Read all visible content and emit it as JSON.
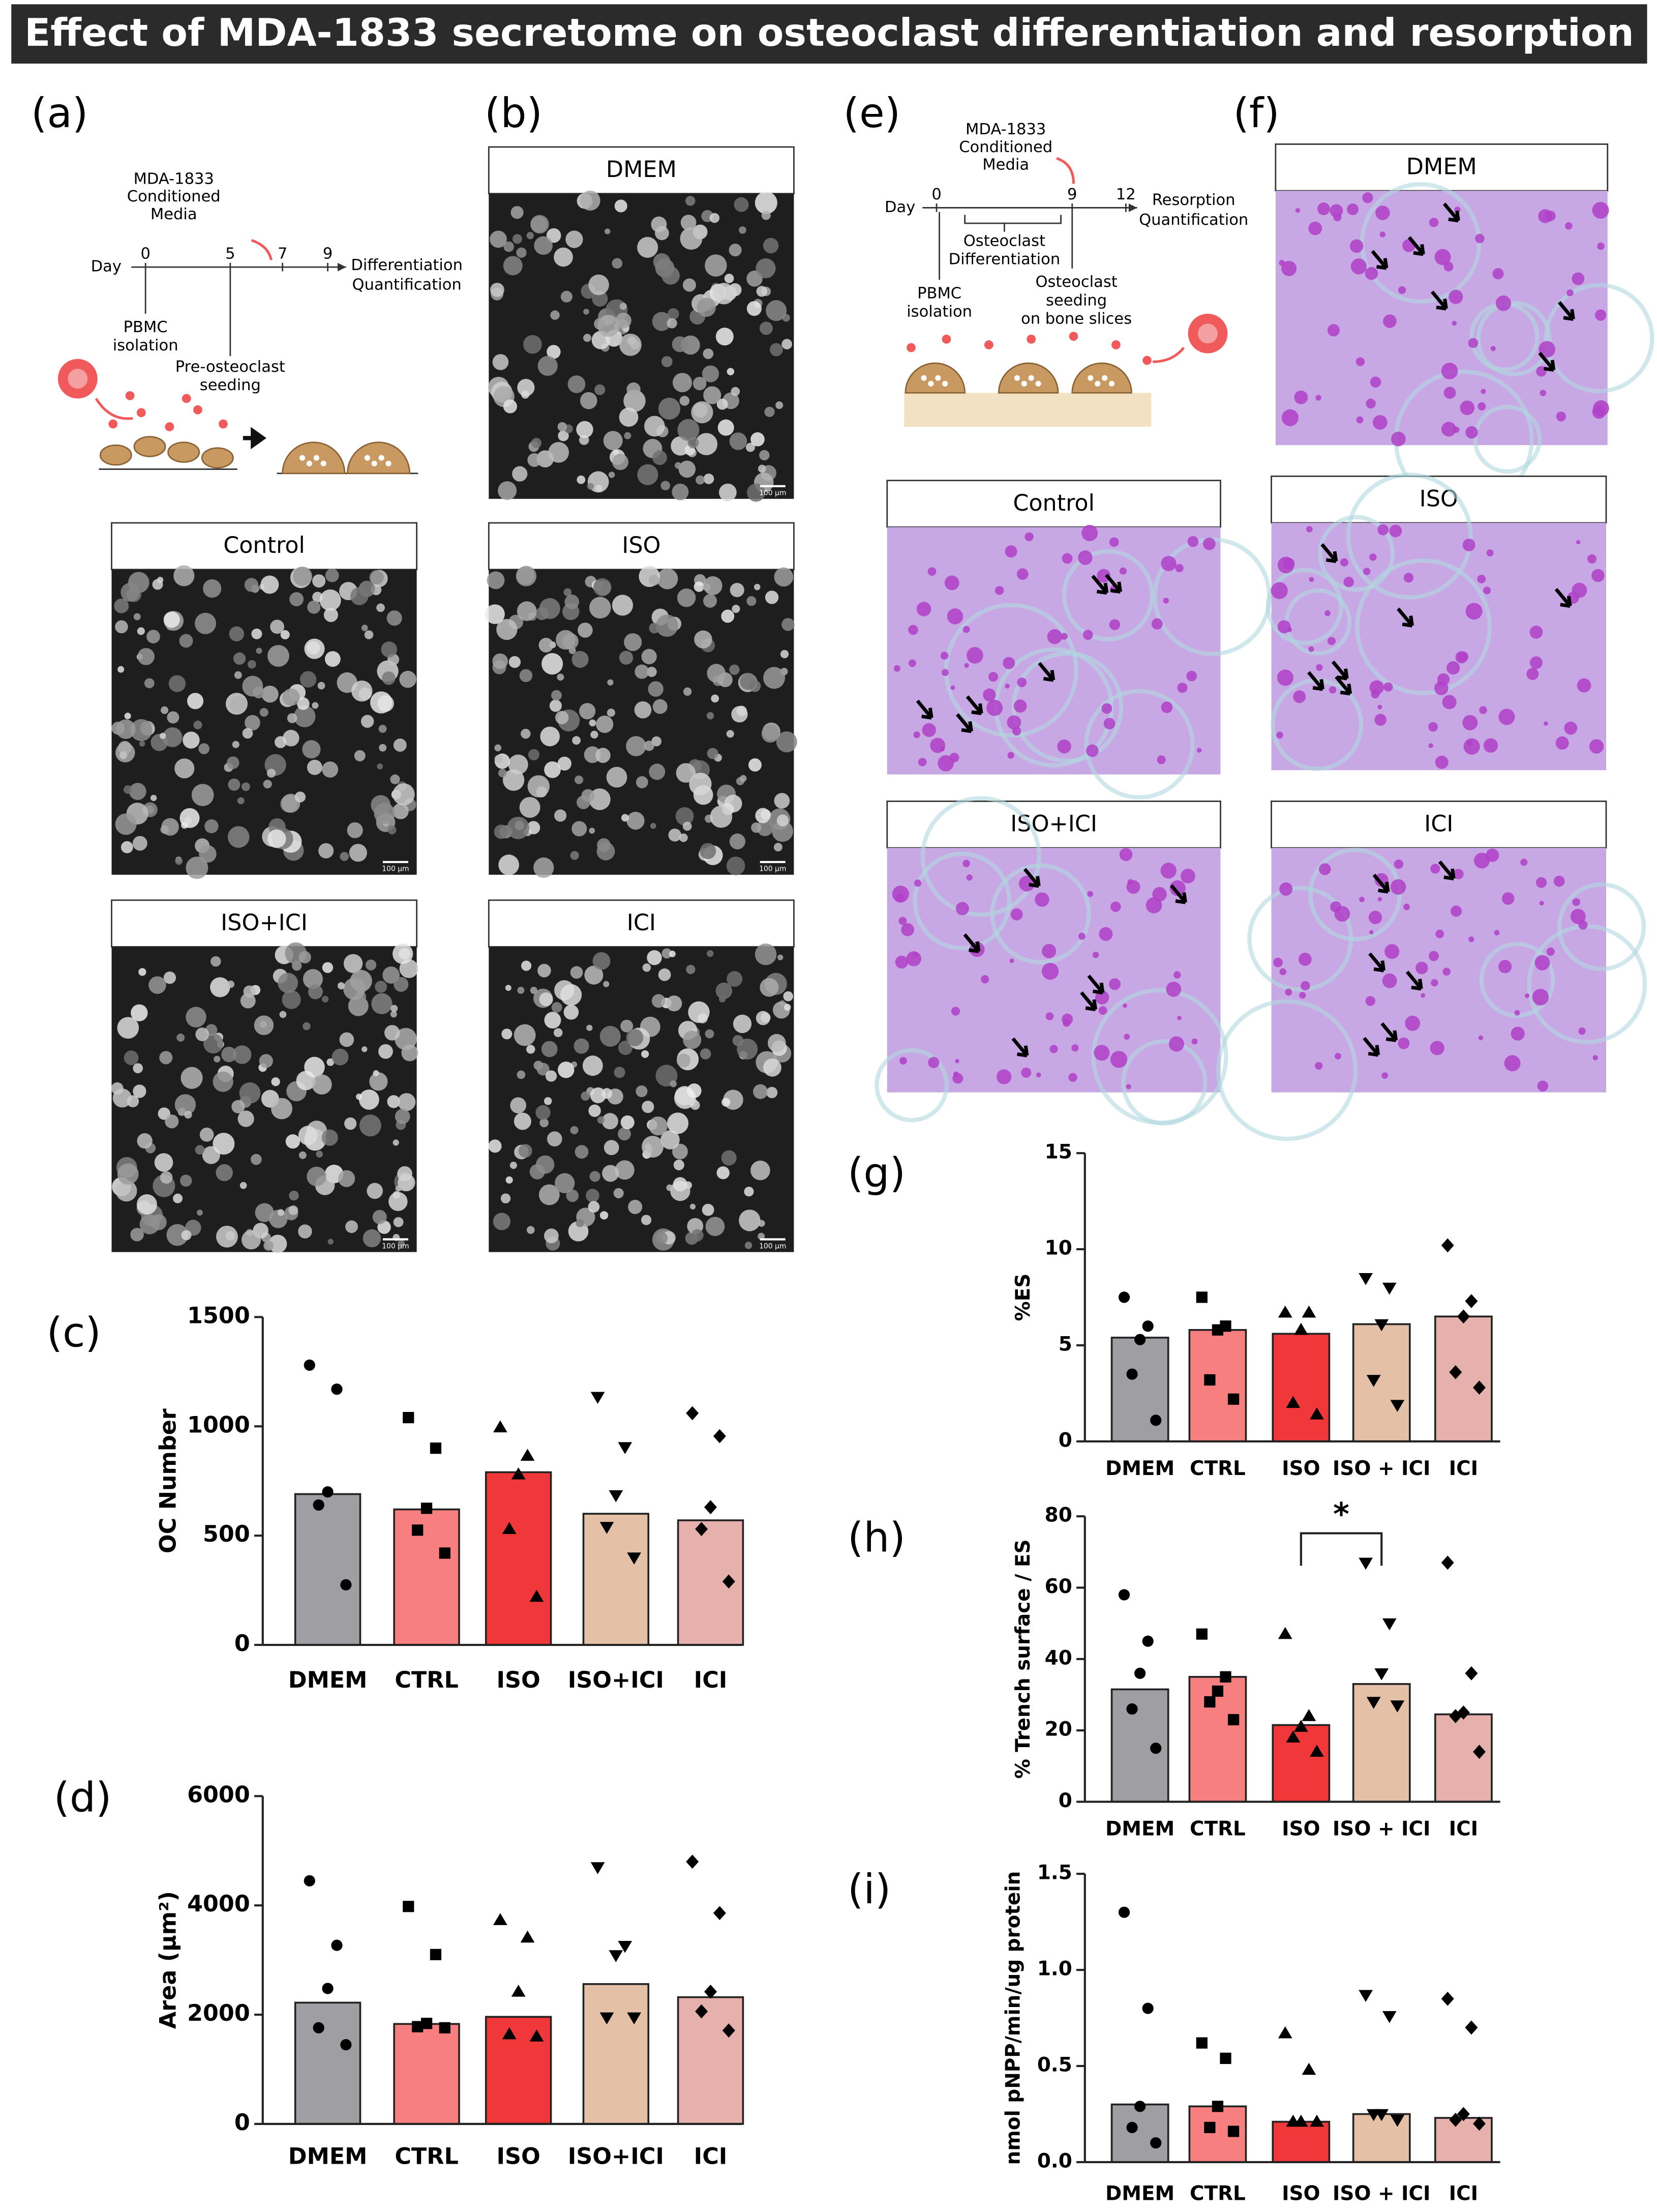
{
  "title": "Effect of MDA-1833 secretome on osteoclast differentiation and resorption",
  "panel_labels": [
    "(a)",
    "(b)",
    "(c)",
    "(d)",
    "(e)",
    "(f)",
    "(g)",
    "(h)",
    "(i)"
  ],
  "images": {
    "grayscale": [
      "DMEM",
      "Control",
      "ISO",
      "ISO+ICI",
      "ICI"
    ],
    "stained": [
      "DMEM",
      "Control",
      "ISO",
      "ISO+ICI",
      "ICI"
    ],
    "scale_bar": "100 µm"
  },
  "schematic_a": {
    "media": [
      "MDA-1833",
      "Conditioned",
      "Media"
    ],
    "day": "Day",
    "days": [
      0,
      5,
      7,
      9
    ],
    "endpoint": [
      "Differentiation",
      "Quantification"
    ],
    "notes": [
      [
        "PBMC",
        "isolation"
      ],
      [
        "Pre-osteoclast",
        "seeding"
      ]
    ]
  },
  "schematic_e": {
    "media": [
      "MDA-1833",
      "Conditioned",
      "Media"
    ],
    "day": "Day",
    "days": [
      0,
      9,
      12
    ],
    "endpoint": [
      "Resorption",
      "Quantification"
    ],
    "notes": [
      [
        "Osteoclast",
        "Differentiation"
      ],
      [
        "PBMC",
        "isolation"
      ],
      [
        "Osteoclast",
        "seeding",
        "on bone slices"
      ]
    ]
  },
  "chart_data": [
    {
      "type": "bar",
      "y_label": "OC Number",
      "categories": [
        "DMEM",
        "CTRL",
        "ISO",
        "ISO+ICI",
        "ICI"
      ],
      "values": [
        690,
        620,
        790,
        600,
        570
      ],
      "colors": [
        "#9e9ea3",
        "#f87f7f",
        "#f0383a",
        "#e3c0a6",
        "#e6b0ac"
      ],
      "markers": [
        "circle",
        "square",
        "triangle",
        "triangle-down",
        "diamond"
      ],
      "points": [
        [
          1280,
          1170,
          700,
          640,
          275
        ],
        [
          1040,
          900,
          625,
          525,
          420
        ],
        [
          995,
          865,
          780,
          530,
          220
        ],
        [
          1135,
          905,
          685,
          540,
          400
        ],
        [
          1060,
          955,
          630,
          530,
          290
        ]
      ],
      "ylim": [
        0,
        1500
      ],
      "yticks": [
        0,
        500,
        1000,
        1500
      ]
    },
    {
      "type": "bar",
      "y_label": "Area (μm²)",
      "categories": [
        "DMEM",
        "CTRL",
        "ISO",
        "ISO+ICI",
        "ICI"
      ],
      "values": [
        2220,
        1830,
        1960,
        2560,
        2320
      ],
      "colors": [
        "#9e9ea3",
        "#f87f7f",
        "#f0383a",
        "#e3c0a6",
        "#e6b0ac"
      ],
      "markers": [
        "circle",
        "square",
        "triangle",
        "triangle-down",
        "diamond"
      ],
      "points": [
        [
          4450,
          3270,
          2480,
          1760,
          1450
        ],
        [
          3980,
          3100,
          1840,
          1780,
          1760
        ],
        [
          3730,
          3410,
          2420,
          1640,
          1600
        ],
        [
          4700,
          3260,
          3090,
          1950,
          1950
        ],
        [
          4800,
          3860,
          2420,
          2060,
          1710
        ]
      ],
      "ylim": [
        0,
        6000
      ],
      "yticks": [
        0,
        2000,
        4000,
        6000
      ]
    },
    {
      "type": "bar",
      "y_label": "%ES",
      "categories": [
        "DMEM",
        "CTRL",
        "ISO",
        "ISO + ICI",
        "ICI"
      ],
      "values": [
        5.4,
        5.8,
        5.6,
        6.1,
        6.5
      ],
      "colors": [
        "#9e9ea3",
        "#f87f7f",
        "#f0383a",
        "#e3c0a6",
        "#e6b0ac"
      ],
      "markers": [
        "circle",
        "square",
        "triangle",
        "triangle-down",
        "diamond"
      ],
      "points": [
        [
          7.5,
          6.0,
          5.3,
          3.5,
          1.1
        ],
        [
          7.5,
          6.0,
          5.8,
          3.2,
          2.2
        ],
        [
          6.7,
          6.7,
          5.8,
          2.0,
          1.4
        ],
        [
          8.5,
          8.0,
          6.1,
          3.2,
          1.9
        ],
        [
          10.2,
          7.3,
          6.5,
          3.6,
          2.8
        ]
      ],
      "ylim": [
        0,
        15
      ],
      "yticks": [
        0,
        5,
        10,
        15
      ]
    },
    {
      "type": "bar",
      "y_label": "% Trench surface / ES",
      "annotation": "*",
      "categories": [
        "DMEM",
        "CTRL",
        "ISO",
        "ISO + ICI",
        "ICI"
      ],
      "values": [
        31.5,
        35,
        21.5,
        33,
        24.5
      ],
      "colors": [
        "#9e9ea3",
        "#f87f7f",
        "#f0383a",
        "#e3c0a6",
        "#e6b0ac"
      ],
      "markers": [
        "circle",
        "square",
        "triangle",
        "triangle-down",
        "diamond"
      ],
      "points": [
        [
          58,
          45,
          36,
          26,
          15
        ],
        [
          47,
          35,
          31,
          28,
          23
        ],
        [
          47,
          24,
          21,
          18,
          14
        ],
        [
          67,
          50,
          36,
          28,
          27
        ],
        [
          67,
          36,
          25,
          24,
          14
        ]
      ],
      "ylim": [
        0,
        80
      ],
      "yticks": [
        0,
        20,
        40,
        60,
        80
      ]
    },
    {
      "type": "bar",
      "y_label": "nmol pNPP/min/ug protein",
      "categories": [
        "DMEM",
        "CTRL",
        "ISO",
        "ISO + ICI",
        "ICI"
      ],
      "values": [
        0.3,
        0.29,
        0.21,
        0.25,
        0.23
      ],
      "colors": [
        "#9e9ea3",
        "#f87f7f",
        "#f0383a",
        "#e3c0a6",
        "#e6b0ac"
      ],
      "markers": [
        "circle",
        "square",
        "triangle",
        "triangle-down",
        "diamond"
      ],
      "points": [
        [
          1.3,
          0.8,
          0.29,
          0.18,
          0.1
        ],
        [
          0.62,
          0.54,
          0.29,
          0.18,
          0.16
        ],
        [
          0.67,
          0.48,
          0.21,
          0.21,
          0.21
        ],
        [
          0.87,
          0.76,
          0.25,
          0.25,
          0.22
        ],
        [
          0.85,
          0.7,
          0.25,
          0.22,
          0.2
        ]
      ],
      "ylim": [
        0,
        1.5
      ],
      "yticks": [
        {
          "value": 0,
          "label": "0.0"
        },
        0.5,
        {
          "value": 1,
          "label": "1.0"
        },
        1.5
      ]
    }
  ]
}
